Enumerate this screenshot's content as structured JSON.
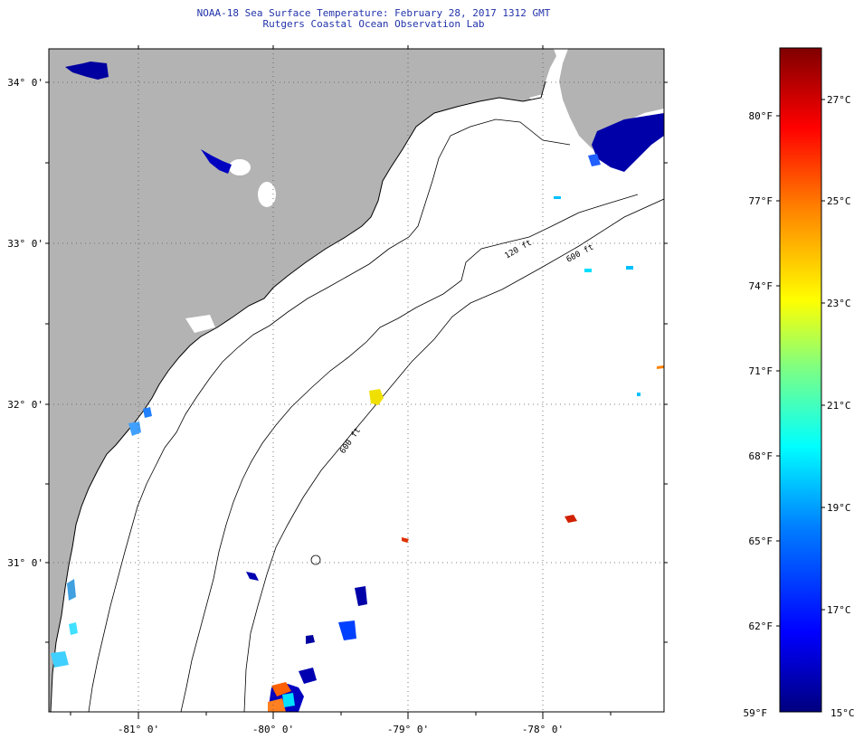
{
  "title": {
    "line1": "NOAA-18 Sea Surface Temperature:  February 28, 2017 1312 GMT",
    "line2": "Rutgers Coastal Ocean Observation Lab"
  },
  "map": {
    "longitude_labels": [
      "-81° 0'",
      "-80° 0'",
      "-79° 0'",
      "-78° 0'"
    ],
    "latitude_labels": [
      "34° 0'",
      "33° 0'",
      "32° 0'",
      "31° 0'"
    ],
    "contour_labels": [
      "120 ft",
      "600 ft",
      "600 ft"
    ],
    "colors": {
      "land": "#b3b3b3",
      "ocean_nodata": "#ffffff",
      "coast": "#000000"
    }
  },
  "colorbar": {
    "fahrenheit_labels": [
      "80°F",
      "77°F",
      "74°F",
      "71°F",
      "68°F",
      "65°F",
      "62°F",
      "59°F"
    ],
    "celsius_labels": [
      "27°C",
      "25°C",
      "23°C",
      "21°C",
      "19°C",
      "17°C",
      "15°C"
    ],
    "gradient_colors": [
      "#00007f",
      "#0000ff",
      "#0080ff",
      "#00ffff",
      "#80ff80",
      "#ffff00",
      "#ff8000",
      "#ff0000",
      "#7f0000"
    ]
  }
}
